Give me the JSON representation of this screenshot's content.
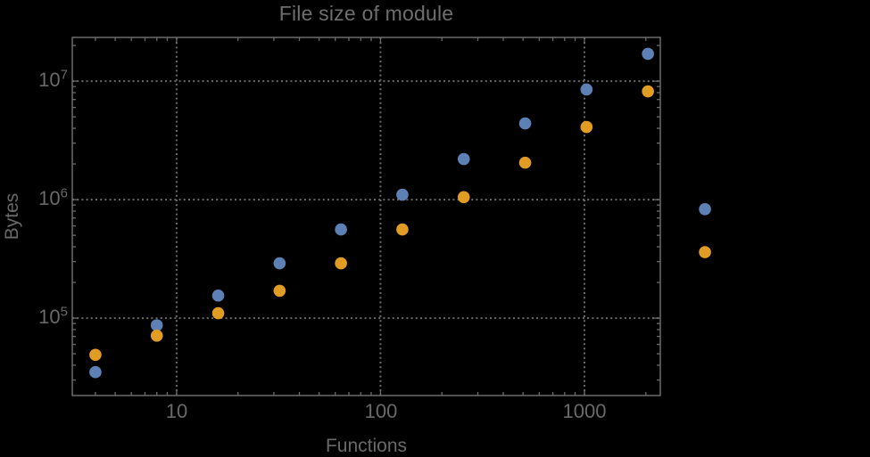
{
  "title": "File size of module",
  "chart": {
    "ylabel": "Bytes",
    "xlabel": "Functions",
    "ytick_base": "10",
    "ytick_exponents": [
      "7",
      "6",
      "5"
    ],
    "xtick_labels": [
      "10",
      "100",
      "1000"
    ]
  },
  "colors": {
    "background": "#000000",
    "frame": "#6b6b6b",
    "gridlines": "#6a6a6a",
    "text": "#696969",
    "series_blue": "#5e81b5",
    "series_orange": "#e19c24"
  },
  "chart_data": {
    "type": "scatter",
    "title": "File size of module",
    "xlabel": "Functions",
    "ylabel": "Bytes",
    "x_scale": "log",
    "y_scale": "log",
    "grid": "dotted lines at major ticks only",
    "legend_position": "none",
    "plot_range_clipping": false,
    "xlim": [
      3.08,
      2355
    ],
    "ylim": [
      22200,
      23400000
    ],
    "x_major_ticks": [
      10,
      100,
      1000
    ],
    "y_major_ticks": [
      100000,
      1000000,
      10000000
    ],
    "marker_radius": 6.8,
    "x": [
      4,
      8,
      16,
      32,
      64,
      128,
      256,
      512,
      1024,
      2048,
      3900
    ],
    "series": [
      {
        "name": "blue",
        "color": "#5e81b5",
        "values": [
          35000,
          87000,
          155000,
          290000,
          560000,
          1100000,
          2200000,
          4400000,
          8500000,
          17000000,
          830000
        ]
      },
      {
        "name": "orange",
        "color": "#e19c24",
        "values": [
          49000,
          71000,
          110000,
          170000,
          290000,
          560000,
          1050000,
          2050000,
          4100000,
          8200000,
          360000
        ]
      }
    ]
  }
}
